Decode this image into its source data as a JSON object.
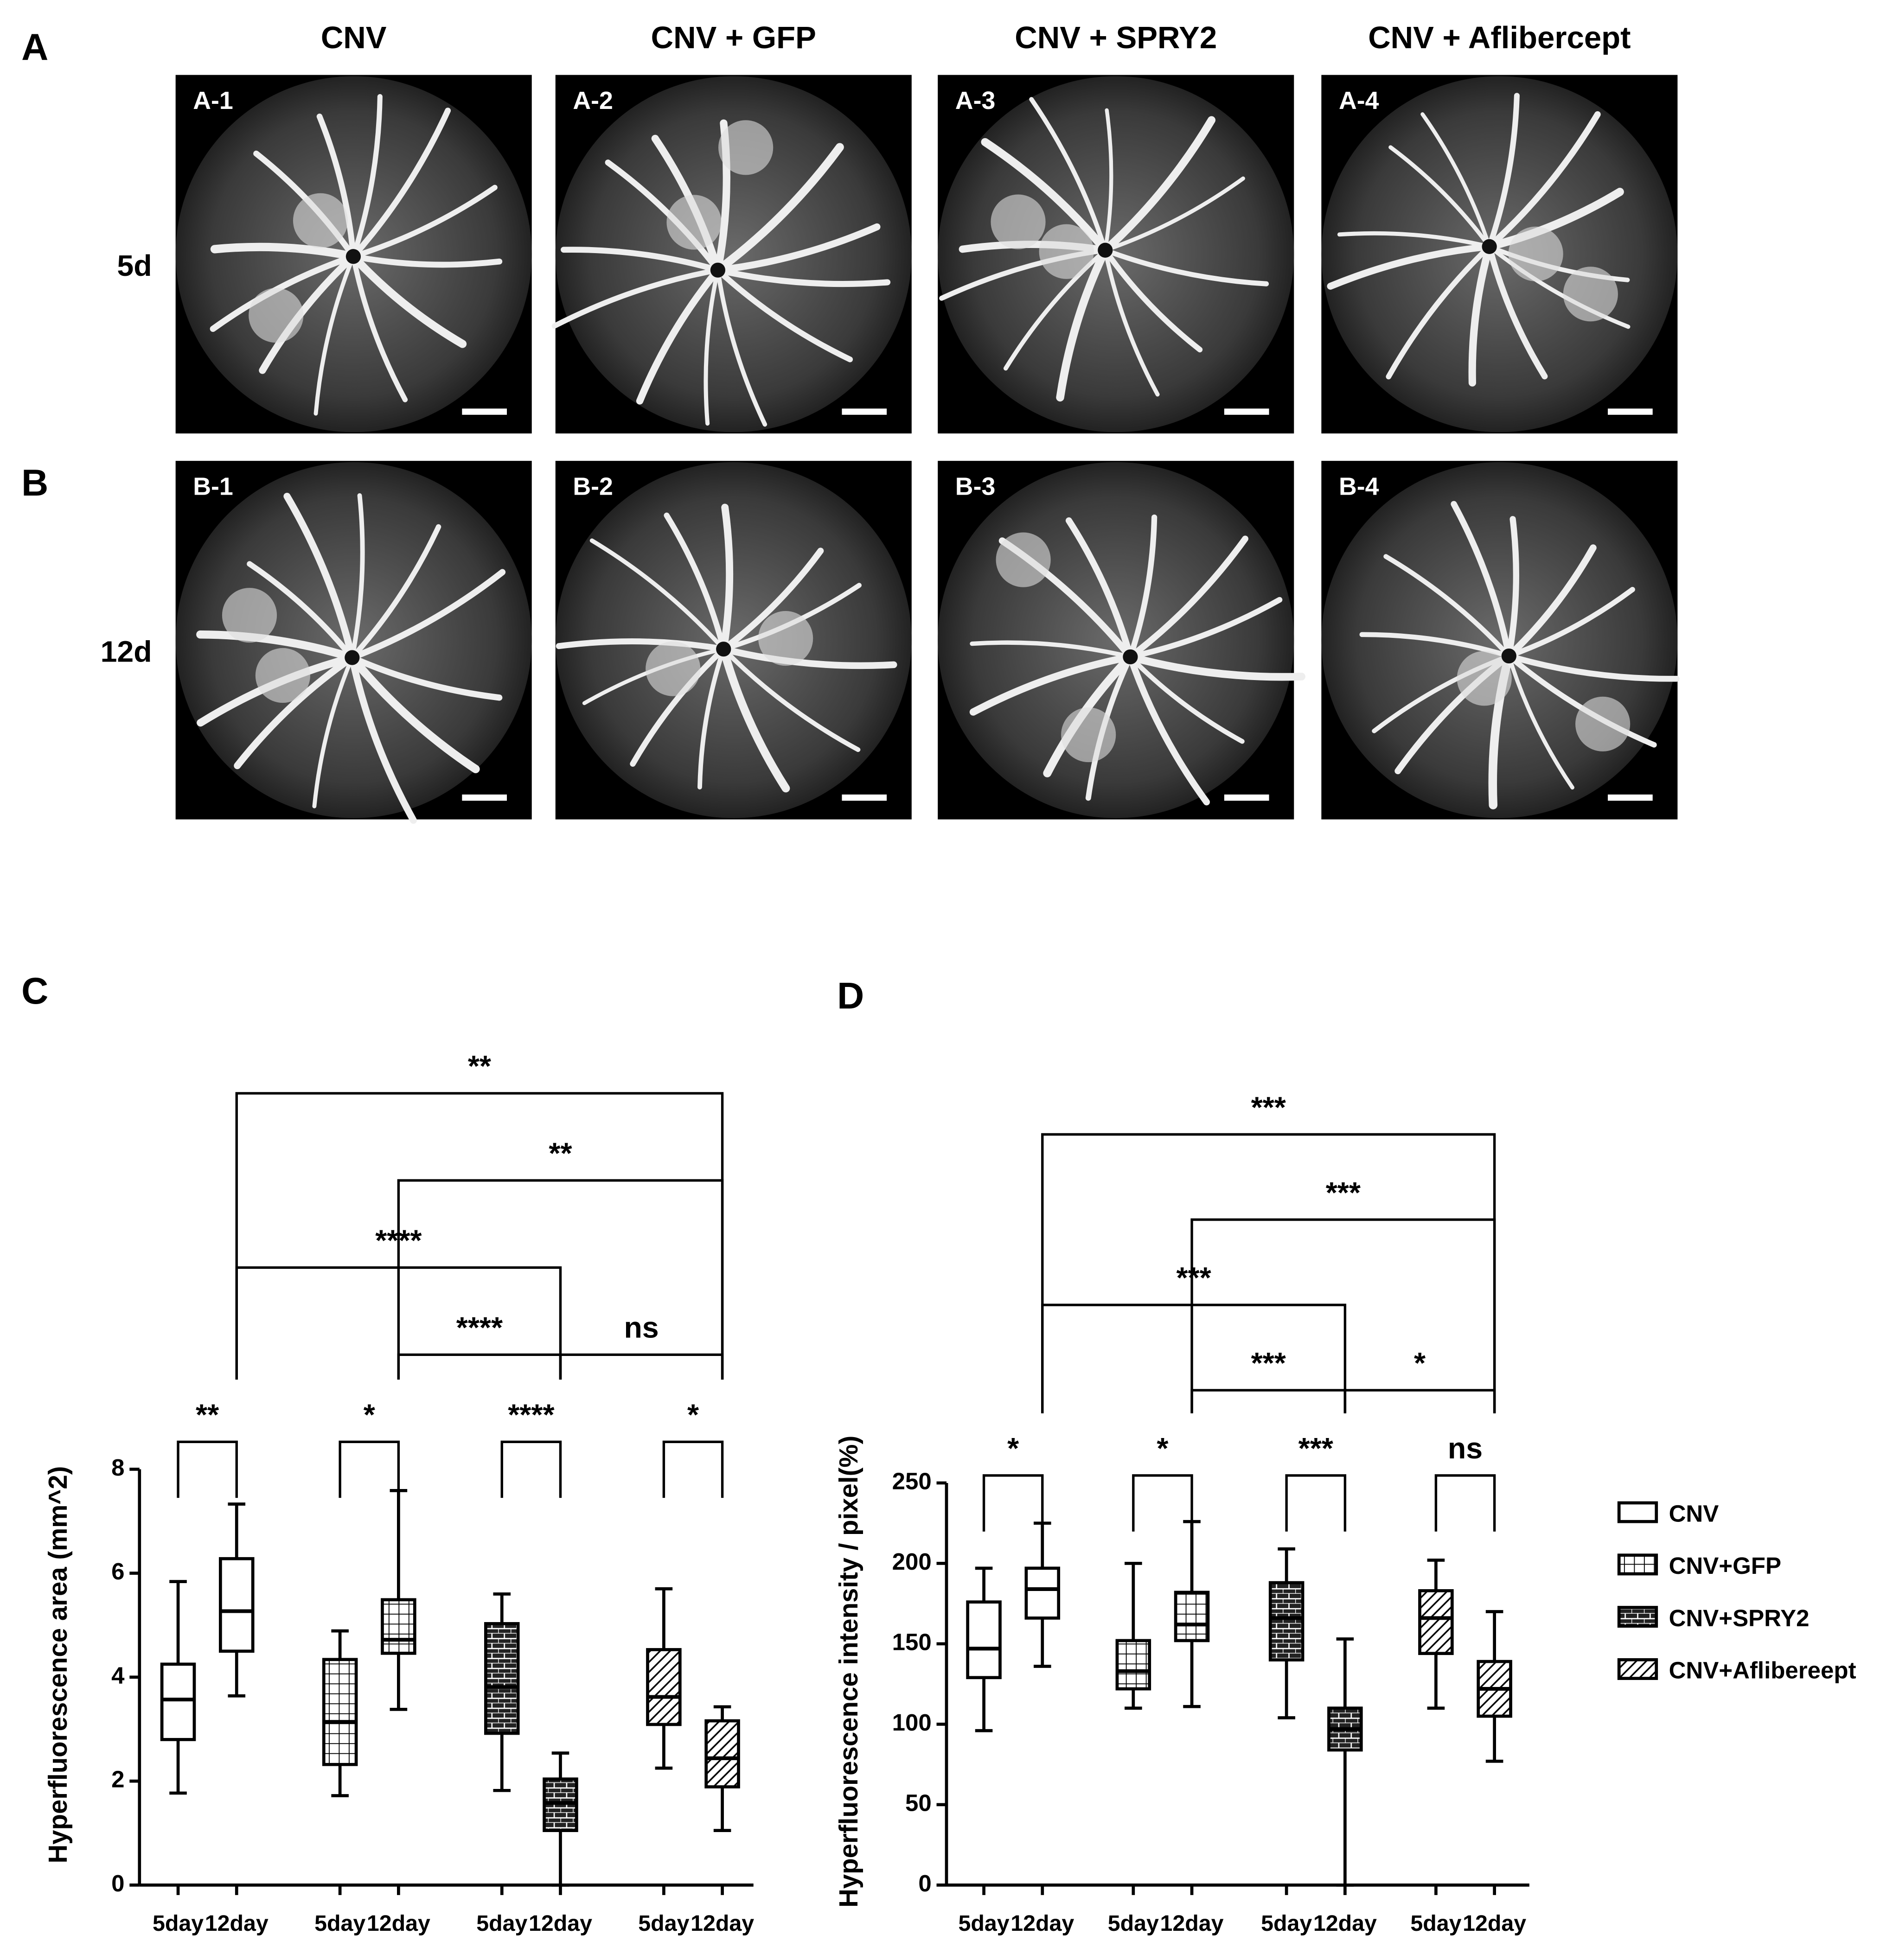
{
  "figure": {
    "panel_labels": [
      "A",
      "B",
      "C",
      "D"
    ],
    "columns": [
      "CNV",
      "CNV + GFP",
      "CNV + SPRY2",
      "CNV + Aflibercept"
    ],
    "rows": [
      {
        "label": "5d",
        "images": [
          "A-1",
          "A-2",
          "A-3",
          "A-4"
        ]
      },
      {
        "label": "12d",
        "images": [
          "B-1",
          "B-2",
          "B-3",
          "B-4"
        ]
      }
    ]
  },
  "chart_data": [
    {
      "type": "box",
      "ylabel": "Hyperfluorescence area (mm^2)",
      "ylim": [
        0,
        8
      ],
      "yticks": [
        0,
        2,
        4,
        6,
        8
      ],
      "categories": [
        "5day",
        "12day"
      ],
      "series": [
        {
          "pattern": "none",
          "min": [
            1.77,
            3.64
          ],
          "q1": [
            2.8,
            4.5
          ],
          "median": [
            3.57,
            5.27
          ],
          "q3": [
            4.25,
            6.28
          ],
          "max": [
            5.84,
            7.33
          ]
        },
        {
          "pattern": "grid",
          "min": [
            1.72,
            3.38
          ],
          "q1": [
            2.32,
            4.46
          ],
          "median": [
            3.14,
            4.72
          ],
          "q3": [
            4.34,
            5.49
          ],
          "max": [
            4.89,
            7.59
          ]
        },
        {
          "pattern": "brick",
          "min": [
            1.82,
            0
          ],
          "q1": [
            2.92,
            1.05
          ],
          "median": [
            3.81,
            1.58
          ],
          "q3": [
            5.03,
            2.04
          ],
          "max": [
            5.6,
            2.54
          ]
        },
        {
          "pattern": "hatch",
          "min": [
            2.25,
            1.05
          ],
          "q1": [
            3.09,
            1.89
          ],
          "median": [
            3.62,
            2.44
          ],
          "q3": [
            4.53,
            3.16
          ],
          "max": [
            5.7,
            3.43
          ]
        }
      ],
      "annotations": [
        {
          "text": "**",
          "from": 0,
          "to": 1
        },
        {
          "text": "*",
          "from": 2,
          "to": 3
        },
        {
          "text": "****",
          "from": 4,
          "to": 5
        },
        {
          "text": "*",
          "from": 6,
          "to": 7
        },
        {
          "text": "****",
          "from": 3,
          "to": 5
        },
        {
          "text": "ns",
          "from": 5,
          "to": 7
        },
        {
          "text": "****",
          "from": 1,
          "to": 5
        },
        {
          "text": "**",
          "from": 3,
          "to": 7
        },
        {
          "text": "**",
          "from": 1,
          "to": 7
        }
      ]
    },
    {
      "type": "box",
      "ylabel": "Hyperfluorescence intensity / pixel(%)",
      "ylim": [
        0,
        250
      ],
      "yticks": [
        0,
        50,
        100,
        150,
        200,
        250
      ],
      "categories": [
        "5day",
        "12day"
      ],
      "series": [
        {
          "name": "CNV",
          "pattern": "none",
          "min": [
            96,
            136
          ],
          "q1": [
            129,
            166
          ],
          "median": [
            147,
            184
          ],
          "q3": [
            176,
            197
          ],
          "max": [
            197,
            225
          ]
        },
        {
          "name": "CNV+GFP",
          "pattern": "grid",
          "min": [
            110,
            111
          ],
          "q1": [
            122,
            152
          ],
          "median": [
            133,
            162
          ],
          "q3": [
            152,
            182
          ],
          "max": [
            200,
            226
          ]
        },
        {
          "name": "CNV+SPRY2",
          "pattern": "brick",
          "min": [
            104,
            0
          ],
          "q1": [
            140,
            84
          ],
          "median": [
            166,
            97
          ],
          "q3": [
            188,
            110
          ],
          "max": [
            209,
            153
          ]
        },
        {
          "name": "CNV+Aflibereept",
          "pattern": "hatch",
          "min": [
            110,
            77
          ],
          "q1": [
            144,
            105
          ],
          "median": [
            166,
            122
          ],
          "q3": [
            183,
            139
          ],
          "max": [
            202,
            170
          ]
        }
      ],
      "annotations": [
        {
          "text": "*",
          "from": 0,
          "to": 1
        },
        {
          "text": "*",
          "from": 2,
          "to": 3
        },
        {
          "text": "***",
          "from": 4,
          "to": 5
        },
        {
          "text": "ns",
          "from": 6,
          "to": 7
        },
        {
          "text": "***",
          "from": 3,
          "to": 5
        },
        {
          "text": "*",
          "from": 5,
          "to": 7
        },
        {
          "text": "***",
          "from": 1,
          "to": 5
        },
        {
          "text": "***",
          "from": 3,
          "to": 7
        },
        {
          "text": "***",
          "from": 1,
          "to": 7
        }
      ]
    }
  ]
}
